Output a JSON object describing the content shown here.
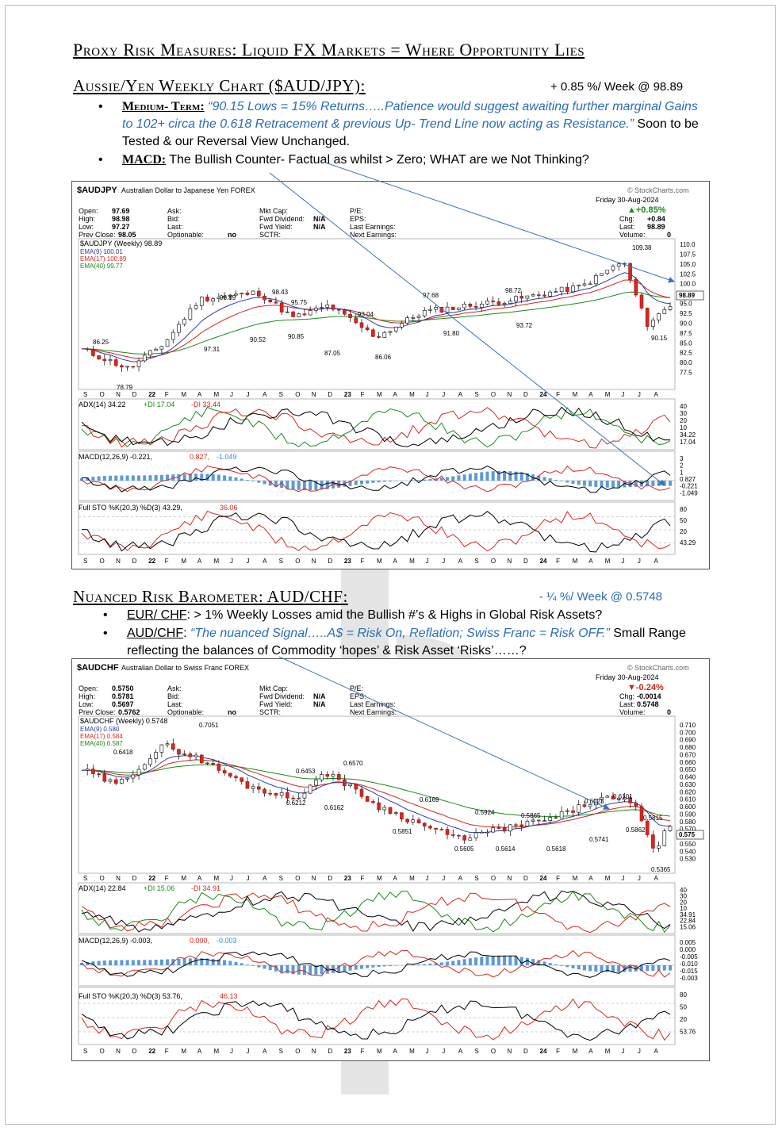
{
  "page": {
    "title": "Proxy Risk Measures: Liquid FX Markets = Where Opportunity Lies"
  },
  "section1": {
    "heading": "Aussie/Yen Weekly Chart ($AUD/JPY):",
    "change": "+ 0.85 %/ Week @ 98.89",
    "bullet1_label": "Medium- Term:",
    "bullet1_quote": "“90.15 Lows = 15% Returns…..Patience would suggest awaiting further marginal Gains to 102+ circa the 0.618 Retracement & previous Up- Trend Line now acting as Resistance.”",
    "bullet1_tail": "Soon to be Tested & our Reversal View Unchanged.",
    "bullet2_label": "MACD:",
    "bullet2_text": "The Bullish Counter- Factual as whilst > Zero; WHAT are we Not Thinking?"
  },
  "chart1": {
    "symbol": "$AUDJPY",
    "name": "Australian Dollar to Japanese Yen FOREX",
    "source": "© StockCharts.com",
    "date": "Friday 30-Aug-2024",
    "pct": "▲+0.85%",
    "open": "97.69",
    "high": "98.98",
    "low": "97.27",
    "prev_close": "98.05",
    "chg": "+0.84",
    "last": "98.89",
    "volume": "0",
    "legend_main": "$AUDJPY (Weekly) 98.89",
    "ema9": "EMA(9) 100.01",
    "ema17": "EMA(17) 100.89",
    "ema40": "EMA(40) 99.77",
    "adx": "ADX(14) 34.22",
    "pdi": "+DI 17.04",
    "mdi": "-DI 33.44",
    "macd": "MACD(12,26,9) -0.221,",
    "macd_sig": "0.827,",
    "macd_hist": "-1.049",
    "sto": "Full STO %K(20,3) %D(3) 43.29,",
    "sto_d": "36.06",
    "last_tag": "98.89",
    "price_labels": [
      "86.25",
      "78.79",
      "96.89",
      "97.31",
      "98.43",
      "95.75",
      "90.52",
      "90.85",
      "93.04",
      "87.05",
      "86.06",
      "97.68",
      "91.80",
      "98.72",
      "93.72",
      "109.38",
      "90.15"
    ],
    "ytick": [
      "110.0",
      "107.5",
      "105.0",
      "102.5",
      "100.0",
      "97.5",
      "95.0",
      "92.5",
      "90.0",
      "87.5",
      "85.0",
      "82.5",
      "80.0",
      "77.5"
    ],
    "adx_ticks": [
      "40",
      "30",
      "20",
      "10",
      "34.22",
      "17.04"
    ],
    "macd_ticks": [
      "3",
      "2",
      "1",
      "0.827",
      "-0.221",
      "-1.049"
    ],
    "sto_ticks": [
      "80",
      "50",
      "20",
      "43.29"
    ],
    "months": [
      "S",
      "O",
      "N",
      "D",
      "22",
      "F",
      "M",
      "A",
      "M",
      "J",
      "J",
      "A",
      "S",
      "O",
      "N",
      "D",
      "23",
      "F",
      "M",
      "A",
      "M",
      "J",
      "J",
      "A",
      "S",
      "O",
      "N",
      "D",
      "24",
      "F",
      "M",
      "A",
      "M",
      "J",
      "J",
      "A"
    ]
  },
  "section2": {
    "heading": "Nuanced Risk Barometer: AUD/CHF:",
    "change": "- ¼ %/ Week @ 0.5748",
    "bullet1_label": "EUR/ CHF",
    "bullet1_text": ": > 1% Weekly Losses amid the Bullish #’s & Highs in Global Risk Assets?",
    "bullet2_label": "AUD/CHF",
    "bullet2_quote": "“The nuanced Signal…..A$ = Risk On, Reflation; Swiss Franc = Risk OFF.”",
    "bullet2_tail": "Small Range reflecting the balances of Commodity ‘hopes’ & Risk Asset ‘Risks’……?"
  },
  "chart2": {
    "symbol": "$AUDCHF",
    "name": "Australian Dollar to Swiss Franc FOREX",
    "source": "© StockCharts.com",
    "date": "Friday 30-Aug-2024",
    "pct": "▼-0.24%",
    "open": "0.5750",
    "high": "0.5781",
    "low": "0.5697",
    "prev_close": "0.5762",
    "chg": "-0.0014",
    "last": "0.5748",
    "volume": "0",
    "legend_main": "$AUDCHF (Weekly) 0.5748",
    "ema9": "EMA(9) 0.580",
    "ema17": "EMA(17) 0.584",
    "ema40": "EMA(40) 0.587",
    "adx": "ADX(14) 22.84",
    "pdi": "+DI 15.06",
    "mdi": "-DI 34.91",
    "macd": "MACD(12,26,9) -0.003,",
    "macd_sig": "0.000,",
    "macd_hist": "-0.003",
    "sto": "Full STO %K(20,3) %D(3) 53.76,",
    "sto_d": "46.13",
    "last_tag": "0.575",
    "price_labels": [
      "0.6418",
      "0.7051",
      "0.6453",
      "0.6212",
      "0.6162",
      "0.6570",
      "0.6169",
      "0.5851",
      "0.5924",
      "0.5605",
      "0.5614",
      "0.5865",
      "0.5618",
      "0.6023",
      "0.6101",
      "0.5741",
      "0.5862",
      "0.5815",
      "0.5365"
    ],
    "ytick": [
      "0.710",
      "0.700",
      "0.690",
      "0.680",
      "0.670",
      "0.660",
      "0.650",
      "0.640",
      "0.630",
      "0.620",
      "0.610",
      "0.600",
      "0.590",
      "0.580",
      "0.570",
      "0.560",
      "0.550",
      "0.540",
      "0.530"
    ],
    "adx_ticks": [
      "40",
      "30",
      "20",
      "10",
      "34.91",
      "22.84",
      "15.06"
    ],
    "macd_ticks": [
      "0.005",
      "0.000",
      "-0.005",
      "-0.010",
      "-0.015",
      "-0.003"
    ],
    "sto_ticks": [
      "80",
      "50",
      "20",
      "53.76"
    ],
    "months": [
      "S",
      "O",
      "N",
      "D",
      "22",
      "F",
      "M",
      "A",
      "M",
      "J",
      "J",
      "A",
      "S",
      "O",
      "N",
      "D",
      "23",
      "F",
      "M",
      "A",
      "M",
      "J",
      "J",
      "A",
      "S",
      "O",
      "N",
      "D",
      "24",
      "F",
      "M",
      "A",
      "M",
      "J",
      "J",
      "A"
    ]
  },
  "ui": {
    "open_label": "Open:",
    "high_label": "High:",
    "low_label": "Low:",
    "prev_label": "Prev Close:",
    "ask_label": "Ask:",
    "bid_label": "Bid:",
    "last_label": "Last:",
    "optionable_label": "Optionable:",
    "optionable_val": "no",
    "mktcap_label": "Mkt Cap:",
    "fwddiv_label": "Fwd Dividend:",
    "fwdyld_label": "Fwd Yield:",
    "sctr_label": "SCTR:",
    "na": "N/A",
    "pe_label": "P/E:",
    "eps_label": "EPS:",
    "lastearn_label": "Last Earnings:",
    "nextearn_label": "Next Earnings:",
    "chg_label": "Chg:",
    "last2_label": "Last:",
    "vol_label": "Volume:"
  }
}
